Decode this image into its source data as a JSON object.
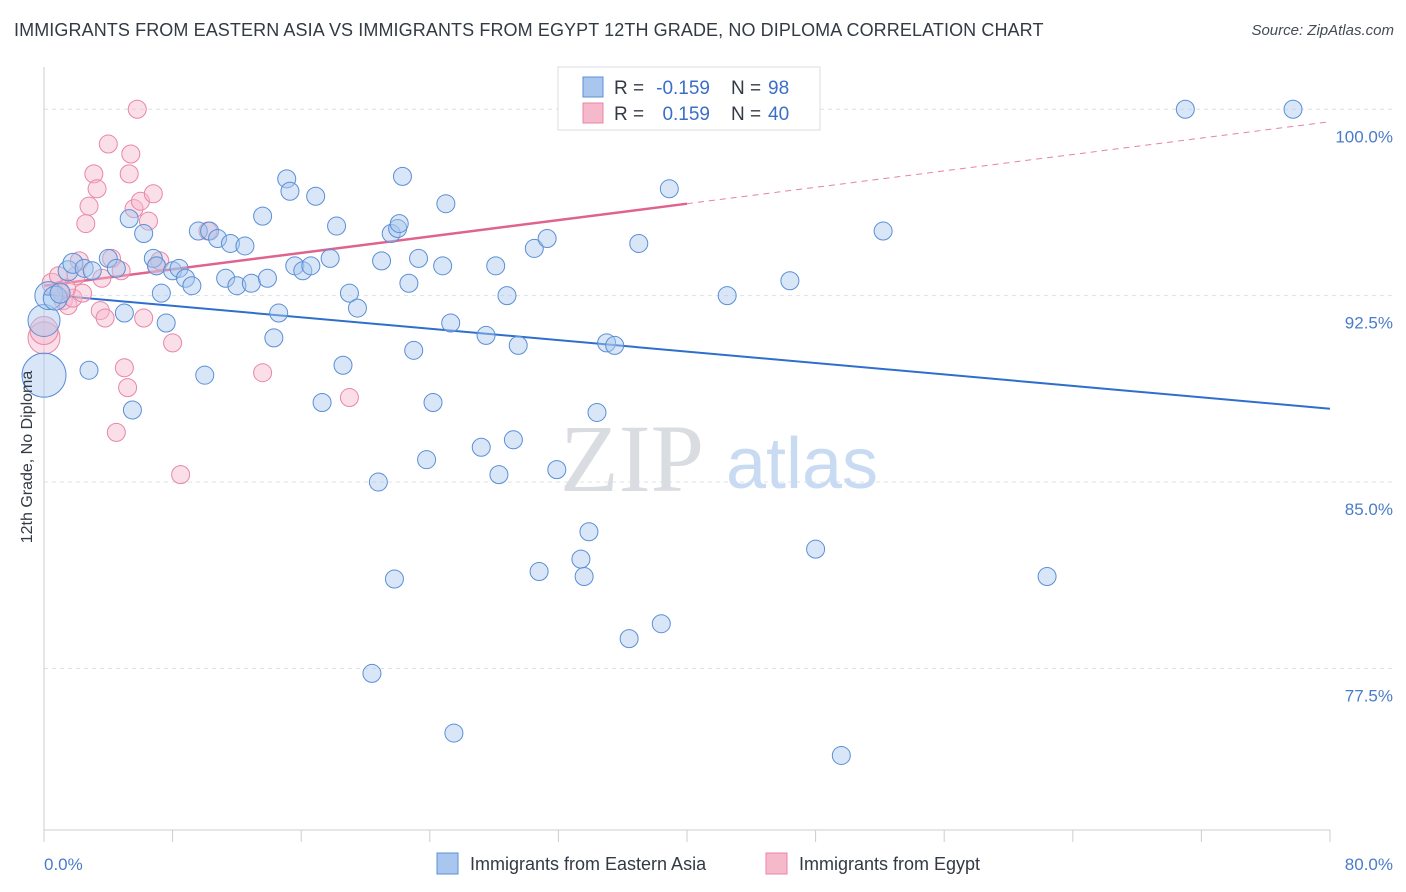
{
  "title": "IMMIGRANTS FROM EASTERN ASIA VS IMMIGRANTS FROM EGYPT 12TH GRADE, NO DIPLOMA CORRELATION CHART",
  "source": "Source: ZipAtlas.com",
  "watermark": {
    "zip": "ZIP",
    "atlas": "atlas"
  },
  "colors": {
    "blue_fill": "#a9c7ee",
    "blue_stroke": "#5b8fd6",
    "blue_line": "#2f6fcc",
    "pink_fill": "#f6b8cb",
    "pink_stroke": "#e986a6",
    "pink_line": "#e0638f",
    "tick_text": "#4a7cc9",
    "grid": "#dde1e6"
  },
  "legend": {
    "rows": [
      {
        "r_label": "R =",
        "r_value": "-0.159",
        "n_label": "N =",
        "n_value": "98"
      },
      {
        "r_label": "R =",
        "r_value": "0.159",
        "n_label": "N =",
        "n_value": "40"
      }
    ]
  },
  "bottom_legend": [
    "Immigrants from Eastern Asia",
    "Immigrants from Egypt"
  ],
  "chart_data": {
    "type": "scatter",
    "title": "IMMIGRANTS FROM EASTERN ASIA VS IMMIGRANTS FROM EGYPT 12TH GRADE, NO DIPLOMA CORRELATION CHART",
    "xlabel": "",
    "ylabel": "12th Grade, No Diploma",
    "xlim": [
      0,
      80
    ],
    "ylim": [
      71,
      101.7
    ],
    "x_tick_labels": [
      "0.0%",
      "80.0%"
    ],
    "y_tick_values": [
      100,
      92.5,
      85,
      77.5
    ],
    "y_tick_labels": [
      "100.0%",
      "92.5%",
      "85.0%",
      "77.5%"
    ],
    "grid": true,
    "legend_position": "top-center",
    "series": [
      {
        "name": "Immigrants from Eastern Asia",
        "trend": {
          "x": [
            0,
            80
          ],
          "y": [
            92.55,
            87.95
          ],
          "style": "solid"
        },
        "points": [
          [
            0.0,
            89.3,
            22
          ],
          [
            0.0,
            91.5,
            16
          ],
          [
            0.3,
            92.5,
            14
          ],
          [
            0.7,
            92.4,
            12
          ],
          [
            1.0,
            92.6,
            10
          ],
          [
            1.5,
            93.5,
            10
          ],
          [
            1.8,
            93.8,
            10
          ],
          [
            2.5,
            93.6,
            9
          ],
          [
            2.8,
            89.5,
            9
          ],
          [
            3.0,
            93.5,
            9
          ],
          [
            4.0,
            94.0,
            9
          ],
          [
            4.5,
            93.6,
            9
          ],
          [
            5.0,
            91.8,
            9
          ],
          [
            5.3,
            95.6,
            9
          ],
          [
            5.5,
            87.9,
            9
          ],
          [
            6.2,
            95.0,
            9
          ],
          [
            6.8,
            94.0,
            9
          ],
          [
            7.0,
            93.7,
            9
          ],
          [
            7.3,
            92.6,
            9
          ],
          [
            7.6,
            91.4,
            9
          ],
          [
            8.0,
            93.5,
            9
          ],
          [
            8.4,
            93.6,
            9
          ],
          [
            8.8,
            93.2,
            9
          ],
          [
            9.2,
            92.9,
            9
          ],
          [
            9.6,
            95.1,
            9
          ],
          [
            10.0,
            89.3,
            9
          ],
          [
            10.3,
            95.1,
            9
          ],
          [
            10.8,
            94.8,
            9
          ],
          [
            11.3,
            93.2,
            9
          ],
          [
            11.6,
            94.6,
            9
          ],
          [
            12.0,
            92.9,
            9
          ],
          [
            12.5,
            94.5,
            9
          ],
          [
            12.9,
            93.0,
            9
          ],
          [
            13.6,
            95.7,
            9
          ],
          [
            13.9,
            93.2,
            9
          ],
          [
            14.3,
            90.8,
            9
          ],
          [
            14.6,
            91.8,
            9
          ],
          [
            15.1,
            97.2,
            9
          ],
          [
            15.3,
            96.7,
            9
          ],
          [
            15.6,
            93.7,
            9
          ],
          [
            16.1,
            93.5,
            9
          ],
          [
            16.6,
            93.7,
            9
          ],
          [
            16.9,
            96.5,
            9
          ],
          [
            17.3,
            88.2,
            9
          ],
          [
            17.8,
            94.0,
            9
          ],
          [
            18.2,
            95.3,
            9
          ],
          [
            18.6,
            89.7,
            9
          ],
          [
            19.0,
            92.6,
            9
          ],
          [
            19.5,
            92.0,
            9
          ],
          [
            20.4,
            77.3,
            9
          ],
          [
            20.8,
            85.0,
            9
          ],
          [
            21.0,
            93.9,
            9
          ],
          [
            21.6,
            95.0,
            9
          ],
          [
            22.0,
            95.2,
            9
          ],
          [
            22.3,
            97.3,
            9
          ],
          [
            22.7,
            93.0,
            9
          ],
          [
            23.0,
            90.3,
            9
          ],
          [
            23.3,
            94.0,
            9
          ],
          [
            23.8,
            85.9,
            9
          ],
          [
            24.2,
            88.2,
            9
          ],
          [
            24.8,
            93.7,
            9
          ],
          [
            25.0,
            96.2,
            9
          ],
          [
            25.3,
            91.4,
            9
          ],
          [
            25.5,
            74.9,
            9
          ],
          [
            27.2,
            86.4,
            9
          ],
          [
            27.5,
            90.9,
            9
          ],
          [
            28.1,
            93.7,
            9
          ],
          [
            28.3,
            85.3,
            9
          ],
          [
            28.8,
            92.5,
            9
          ],
          [
            29.2,
            86.7,
            9
          ],
          [
            29.5,
            90.5,
            9
          ],
          [
            30.5,
            94.4,
            9
          ],
          [
            30.8,
            81.4,
            9
          ],
          [
            31.3,
            94.8,
            9
          ],
          [
            31.9,
            85.5,
            9
          ],
          [
            33.4,
            81.9,
            9
          ],
          [
            33.6,
            81.2,
            9
          ],
          [
            33.9,
            83.0,
            9
          ],
          [
            34.4,
            87.8,
            9
          ],
          [
            35.0,
            90.6,
            9
          ],
          [
            35.5,
            90.5,
            9
          ],
          [
            36.4,
            78.7,
            9
          ],
          [
            37.0,
            94.6,
            9
          ],
          [
            38.0,
            100.0,
            9
          ],
          [
            38.4,
            79.3,
            9
          ],
          [
            38.9,
            96.8,
            9
          ],
          [
            42.0,
            100.0,
            9
          ],
          [
            42.5,
            92.5,
            9
          ],
          [
            46.4,
            93.1,
            9
          ],
          [
            48.0,
            82.3,
            9
          ],
          [
            49.6,
            74.0,
            9
          ],
          [
            52.2,
            95.1,
            9
          ],
          [
            21.8,
            81.1,
            9
          ],
          [
            62.4,
            81.2,
            9
          ],
          [
            71.0,
            100.0,
            9
          ],
          [
            77.7,
            100.0,
            9
          ],
          [
            38.6,
            100.0,
            9
          ],
          [
            22.1,
            95.4,
            9
          ]
        ]
      },
      {
        "name": "Immigrants from Egypt",
        "trend": {
          "x": [
            0,
            40,
            80
          ],
          "y": [
            92.9,
            96.2,
            99.5
          ],
          "solid_until": 40
        },
        "points": [
          [
            0.0,
            90.8,
            16
          ],
          [
            0.0,
            91.1,
            14
          ],
          [
            0.5,
            93.0,
            10
          ],
          [
            0.9,
            93.3,
            9
          ],
          [
            1.2,
            92.3,
            9
          ],
          [
            1.5,
            92.1,
            9
          ],
          [
            1.8,
            92.4,
            9
          ],
          [
            2.0,
            93.3,
            9
          ],
          [
            2.2,
            93.9,
            9
          ],
          [
            2.6,
            95.4,
            9
          ],
          [
            2.8,
            96.1,
            9
          ],
          [
            3.1,
            97.4,
            9
          ],
          [
            3.3,
            96.8,
            9
          ],
          [
            3.5,
            91.9,
            9
          ],
          [
            3.8,
            91.6,
            9
          ],
          [
            4.0,
            98.6,
            9
          ],
          [
            4.5,
            87.0,
            9
          ],
          [
            4.8,
            93.5,
            9
          ],
          [
            5.0,
            89.6,
            9
          ],
          [
            5.2,
            88.8,
            9
          ],
          [
            5.3,
            97.4,
            9
          ],
          [
            5.4,
            98.2,
            9
          ],
          [
            5.6,
            96.0,
            9
          ],
          [
            5.8,
            100.0,
            9
          ],
          [
            6.0,
            96.3,
            9
          ],
          [
            6.2,
            91.6,
            9
          ],
          [
            6.5,
            95.5,
            9
          ],
          [
            6.8,
            96.6,
            9
          ],
          [
            7.0,
            93.7,
            9
          ],
          [
            7.2,
            93.9,
            9
          ],
          [
            8.0,
            90.6,
            9
          ],
          [
            8.5,
            85.3,
            9
          ],
          [
            10.2,
            95.1,
            9
          ],
          [
            13.6,
            89.4,
            9
          ],
          [
            19.0,
            88.4,
            9
          ],
          [
            1.0,
            92.7,
            9
          ],
          [
            2.4,
            92.6,
            9
          ],
          [
            3.6,
            93.2,
            9
          ],
          [
            4.2,
            94.0,
            9
          ],
          [
            1.4,
            92.8,
            9
          ]
        ]
      }
    ]
  }
}
